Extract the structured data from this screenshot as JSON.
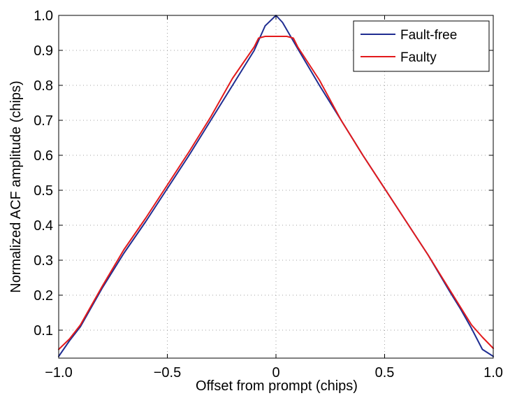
{
  "chart_data": {
    "type": "line",
    "title": "",
    "xlabel": "Offset from prompt (chips)",
    "ylabel": "Normalized ACF amplitude (chips)",
    "xlim": [
      -1.0,
      1.0
    ],
    "ylim": [
      0.02,
      1.0
    ],
    "grid": true,
    "legend_position": "top-right",
    "x_ticks": [
      -1.0,
      -0.5,
      0,
      0.5,
      1.0
    ],
    "x_tick_labels": [
      "−1.0",
      "−0.5",
      "0",
      "0.5",
      "1.0"
    ],
    "y_ticks": [
      0.1,
      0.2,
      0.3,
      0.4,
      0.5,
      0.6,
      0.7,
      0.8,
      0.9,
      1.0
    ],
    "y_tick_labels": [
      "0.1",
      "0.2",
      "0.3",
      "0.4",
      "0.5",
      "0.6",
      "0.7",
      "0.8",
      "0.9",
      "1.0"
    ],
    "series": [
      {
        "name": "Fault-free",
        "color": "#1f2d91",
        "x": [
          -1.0,
          -0.95,
          -0.9,
          -0.85,
          -0.8,
          -0.7,
          -0.6,
          -0.5,
          -0.4,
          -0.3,
          -0.2,
          -0.1,
          -0.05,
          0.0,
          0.03,
          0.1,
          0.2,
          0.3,
          0.4,
          0.5,
          0.6,
          0.7,
          0.8,
          0.85,
          0.9,
          0.95,
          1.0
        ],
        "y": [
          0.025,
          0.07,
          0.11,
          0.165,
          0.22,
          0.32,
          0.41,
          0.505,
          0.6,
          0.7,
          0.8,
          0.9,
          0.97,
          1.0,
          0.98,
          0.905,
          0.8,
          0.7,
          0.6,
          0.505,
          0.41,
          0.315,
          0.21,
          0.16,
          0.105,
          0.045,
          0.025
        ]
      },
      {
        "name": "Faulty",
        "color": "#e31a1c",
        "x": [
          -1.0,
          -0.95,
          -0.9,
          -0.85,
          -0.8,
          -0.7,
          -0.6,
          -0.5,
          -0.4,
          -0.3,
          -0.2,
          -0.1,
          -0.08,
          -0.05,
          0.0,
          0.05,
          0.08,
          0.1,
          0.2,
          0.3,
          0.4,
          0.5,
          0.6,
          0.7,
          0.8,
          0.85,
          0.9,
          0.95,
          1.0
        ],
        "y": [
          0.045,
          0.075,
          0.115,
          0.17,
          0.225,
          0.33,
          0.42,
          0.515,
          0.61,
          0.71,
          0.82,
          0.91,
          0.935,
          0.94,
          0.94,
          0.94,
          0.935,
          0.91,
          0.815,
          0.7,
          0.6,
          0.505,
          0.41,
          0.315,
          0.215,
          0.165,
          0.115,
          0.08,
          0.048
        ]
      }
    ]
  }
}
